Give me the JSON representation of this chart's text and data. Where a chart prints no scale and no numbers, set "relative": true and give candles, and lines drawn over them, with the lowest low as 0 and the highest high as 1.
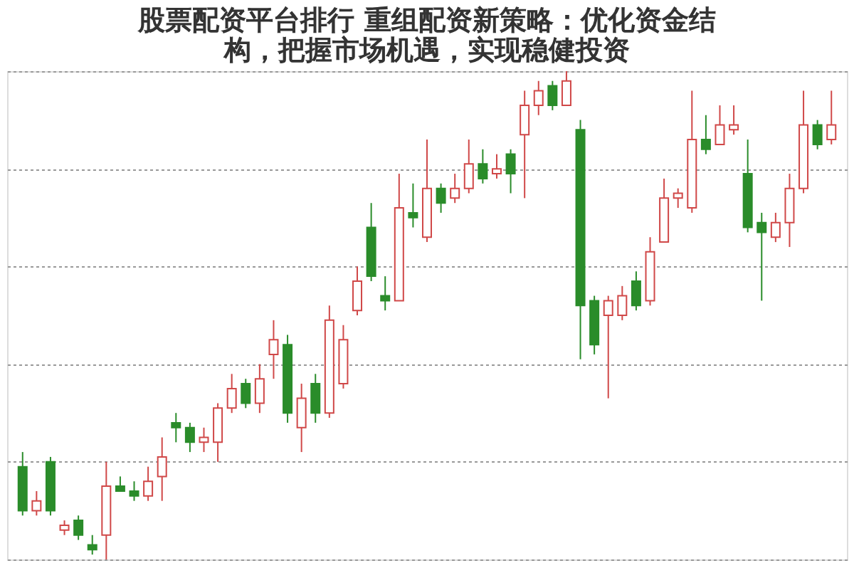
{
  "chart_data": {
    "type": "candlestick",
    "title": [
      "股票配资平台排行 重组配资新策略：优化资金结",
      "构，把握市场机遇，实现稳健投资"
    ],
    "relative": true,
    "grid": "y",
    "categories": [
      null,
      null,
      null,
      null,
      null,
      null,
      null,
      null,
      null,
      null,
      null,
      null,
      null,
      null,
      null,
      null,
      null,
      null,
      null,
      null,
      null,
      null,
      null,
      null,
      null,
      null,
      null,
      null,
      null,
      null,
      null,
      null,
      null,
      null,
      null,
      null,
      null,
      null,
      null,
      null,
      null,
      null,
      null,
      null,
      null,
      null,
      null,
      null,
      null,
      null,
      null,
      null,
      null,
      null,
      null,
      null,
      null,
      null,
      null
    ],
    "ohlc": [
      [
        0.19,
        0.22,
        0.09,
        0.1
      ],
      [
        0.1,
        0.14,
        0.09,
        0.12
      ],
      [
        0.2,
        0.21,
        0.09,
        0.1
      ],
      [
        0.06,
        0.08,
        0.05,
        0.07
      ],
      [
        0.08,
        0.09,
        0.04,
        0.05
      ],
      [
        0.03,
        0.05,
        0.01,
        0.02
      ],
      [
        0.05,
        0.2,
        0.0,
        0.15
      ],
      [
        0.15,
        0.17,
        0.14,
        0.14
      ],
      [
        0.14,
        0.16,
        0.12,
        0.13
      ],
      [
        0.13,
        0.19,
        0.12,
        0.16
      ],
      [
        0.17,
        0.25,
        0.12,
        0.21
      ],
      [
        0.28,
        0.3,
        0.24,
        0.27
      ],
      [
        0.27,
        0.28,
        0.22,
        0.24
      ],
      [
        0.24,
        0.27,
        0.22,
        0.25
      ],
      [
        0.24,
        0.32,
        0.2,
        0.31
      ],
      [
        0.31,
        0.38,
        0.3,
        0.35
      ],
      [
        0.36,
        0.37,
        0.31,
        0.32
      ],
      [
        0.32,
        0.4,
        0.3,
        0.37
      ],
      [
        0.42,
        0.49,
        0.37,
        0.45
      ],
      [
        0.44,
        0.46,
        0.28,
        0.3
      ],
      [
        0.27,
        0.36,
        0.22,
        0.33
      ],
      [
        0.36,
        0.38,
        0.28,
        0.3
      ],
      [
        0.3,
        0.52,
        0.29,
        0.49
      ],
      [
        0.36,
        0.48,
        0.35,
        0.45
      ],
      [
        0.51,
        0.6,
        0.5,
        0.57
      ],
      [
        0.68,
        0.73,
        0.57,
        0.58
      ],
      [
        0.54,
        0.58,
        0.51,
        0.53
      ],
      [
        0.53,
        0.79,
        0.53,
        0.72
      ],
      [
        0.71,
        0.77,
        0.68,
        0.7
      ],
      [
        0.66,
        0.86,
        0.65,
        0.76
      ],
      [
        0.76,
        0.77,
        0.71,
        0.73
      ],
      [
        0.74,
        0.79,
        0.73,
        0.76
      ],
      [
        0.76,
        0.86,
        0.75,
        0.81
      ],
      [
        0.81,
        0.84,
        0.77,
        0.78
      ],
      [
        0.79,
        0.83,
        0.78,
        0.8
      ],
      [
        0.83,
        0.84,
        0.75,
        0.79
      ],
      [
        0.87,
        0.96,
        0.74,
        0.93
      ],
      [
        0.93,
        0.98,
        0.91,
        0.96
      ],
      [
        0.97,
        0.98,
        0.92,
        0.93
      ],
      [
        0.93,
        1.0,
        0.93,
        0.98
      ],
      [
        0.88,
        0.9,
        0.41,
        0.52
      ],
      [
        0.53,
        0.54,
        0.42,
        0.44
      ],
      [
        0.5,
        0.54,
        0.33,
        0.53
      ],
      [
        0.5,
        0.56,
        0.49,
        0.54
      ],
      [
        0.57,
        0.59,
        0.51,
        0.52
      ],
      [
        0.53,
        0.66,
        0.52,
        0.63
      ],
      [
        0.65,
        0.78,
        0.65,
        0.74
      ],
      [
        0.74,
        0.76,
        0.72,
        0.75
      ],
      [
        0.72,
        0.96,
        0.71,
        0.86
      ],
      [
        0.86,
        0.91,
        0.83,
        0.84
      ],
      [
        0.85,
        0.93,
        0.85,
        0.89
      ],
      [
        0.88,
        0.93,
        0.87,
        0.89
      ],
      [
        0.79,
        0.86,
        0.67,
        0.68
      ],
      [
        0.69,
        0.71,
        0.53,
        0.67
      ],
      [
        0.66,
        0.71,
        0.65,
        0.69
      ],
      [
        0.69,
        0.79,
        0.64,
        0.76
      ],
      [
        0.76,
        0.96,
        0.75,
        0.89
      ],
      [
        0.89,
        0.9,
        0.84,
        0.85
      ],
      [
        0.86,
        0.96,
        0.85,
        0.89
      ]
    ],
    "colors": [
      "#2a8c2a",
      "#d04848",
      "#2a8c2a",
      "#d04848",
      "#2a8c2a",
      "#2a8c2a",
      "#d04848",
      "#2a8c2a",
      "#2a8c2a",
      "#d04848",
      "#d04848",
      "#2a8c2a",
      "#2a8c2a",
      "#d04848",
      "#d04848",
      "#d04848",
      "#2a8c2a",
      "#d04848",
      "#d04848",
      "#2a8c2a",
      "#d04848",
      "#2a8c2a",
      "#d04848",
      "#d04848",
      "#d04848",
      "#2a8c2a",
      "#2a8c2a",
      "#d04848",
      "#2a8c2a",
      "#d04848",
      "#2a8c2a",
      "#d04848",
      "#d04848",
      "#2a8c2a",
      "#d04848",
      "#2a8c2a",
      "#d04848",
      "#d04848",
      "#2a8c2a",
      "#d04848",
      "#2a8c2a",
      "#2a8c2a",
      "#d04848",
      "#d04848",
      "#2a8c2a",
      "#d04848",
      "#d04848",
      "#d04848",
      "#d04848",
      "#2a8c2a",
      "#d04848",
      "#d04848",
      "#2a8c2a",
      "#2a8c2a",
      "#d04848",
      "#d04848",
      "#d04848",
      "#2a8c2a",
      "#d04848"
    ]
  }
}
